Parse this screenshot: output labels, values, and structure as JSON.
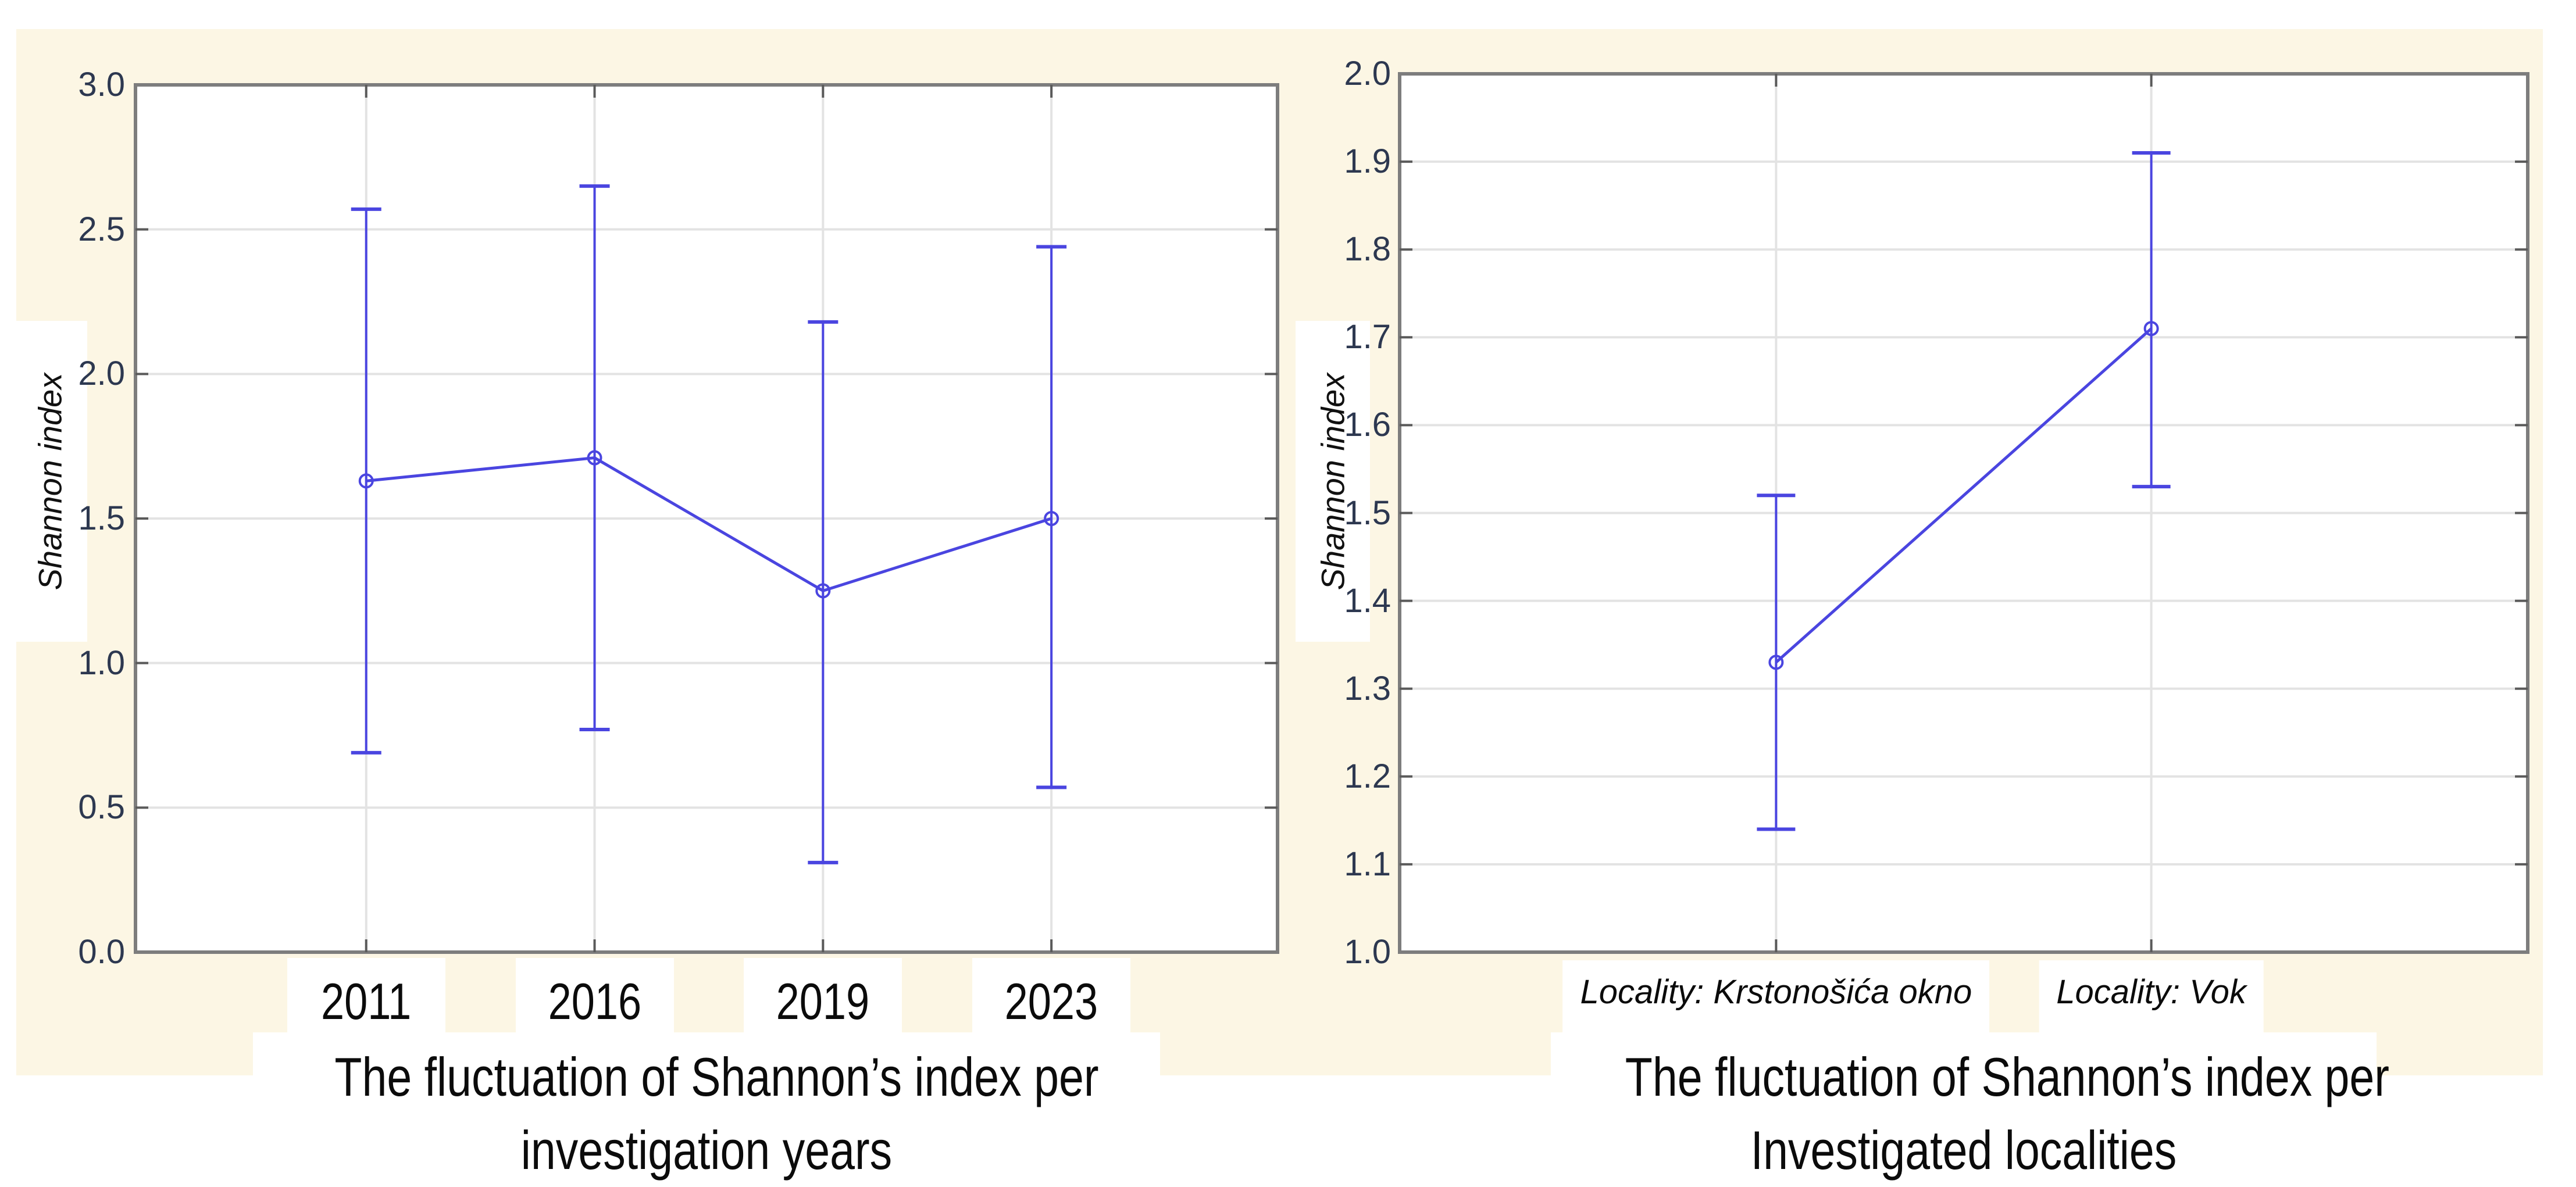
{
  "page": {
    "description": "Two STATISTICA-style mean/error-bar plots of Shannon index",
    "canvas_color": "#fcf6e4",
    "plot_background": "#ffffff"
  },
  "colors": {
    "series_blue": "#4a45e0",
    "gridline": "#e3e3e3",
    "frame_gray": "#7d7d7d",
    "tick_mark": "#5a5a5a",
    "tick_label": "#2d3850",
    "text_black": "#0b0b0b"
  },
  "chart_data": [
    {
      "type": "line",
      "subtype": "means-with-error-bars",
      "title": "The fluctuation of Shannon’s index per investigation years",
      "title_lines": [
        "The fluctuation of Shannon’s index per",
        "investigation years"
      ],
      "ylabel": "Shannon index",
      "xlabel": "",
      "categories": [
        "2011",
        "2016",
        "2019",
        "2023"
      ],
      "series": [
        {
          "name": "Shannon index mean",
          "means": [
            1.63,
            1.71,
            1.25,
            1.5
          ],
          "error_low": [
            0.69,
            0.77,
            0.31,
            0.57
          ],
          "error_high": [
            2.57,
            2.65,
            2.18,
            2.44
          ]
        }
      ],
      "ylim": [
        0.0,
        3.0
      ],
      "ytick_step": 0.5,
      "ytick_labels": [
        "3.0",
        "2.5",
        "2.0",
        "1.5",
        "1.0",
        "0.5",
        "0.0"
      ],
      "grid": "horizontal and vertical category gridlines",
      "legend": "none",
      "marker": "open-circle"
    },
    {
      "type": "line",
      "subtype": "means-with-error-bars",
      "title": "The fluctuation of Shannon’s index per Investigated localities",
      "title_lines": [
        "The fluctuation of Shannon’s index per",
        "Investigated localities"
      ],
      "ylabel": "Shannon index",
      "xlabel": "",
      "categories": [
        "Locality: Krstonošića okno",
        "Locality: Vok"
      ],
      "series": [
        {
          "name": "Shannon index mean",
          "means": [
            1.33,
            1.71
          ],
          "error_low": [
            1.14,
            1.53
          ],
          "error_high": [
            1.52,
            1.91
          ]
        }
      ],
      "ylim": [
        1.0,
        2.0
      ],
      "ytick_step": 0.1,
      "ytick_labels": [
        "2.0",
        "1.9",
        "1.8",
        "1.7",
        "1.6",
        "1.5",
        "1.4",
        "1.3",
        "1.2",
        "1.1",
        "1.0"
      ],
      "grid": "horizontal and vertical category gridlines",
      "legend": "none",
      "marker": "open-circle"
    }
  ]
}
